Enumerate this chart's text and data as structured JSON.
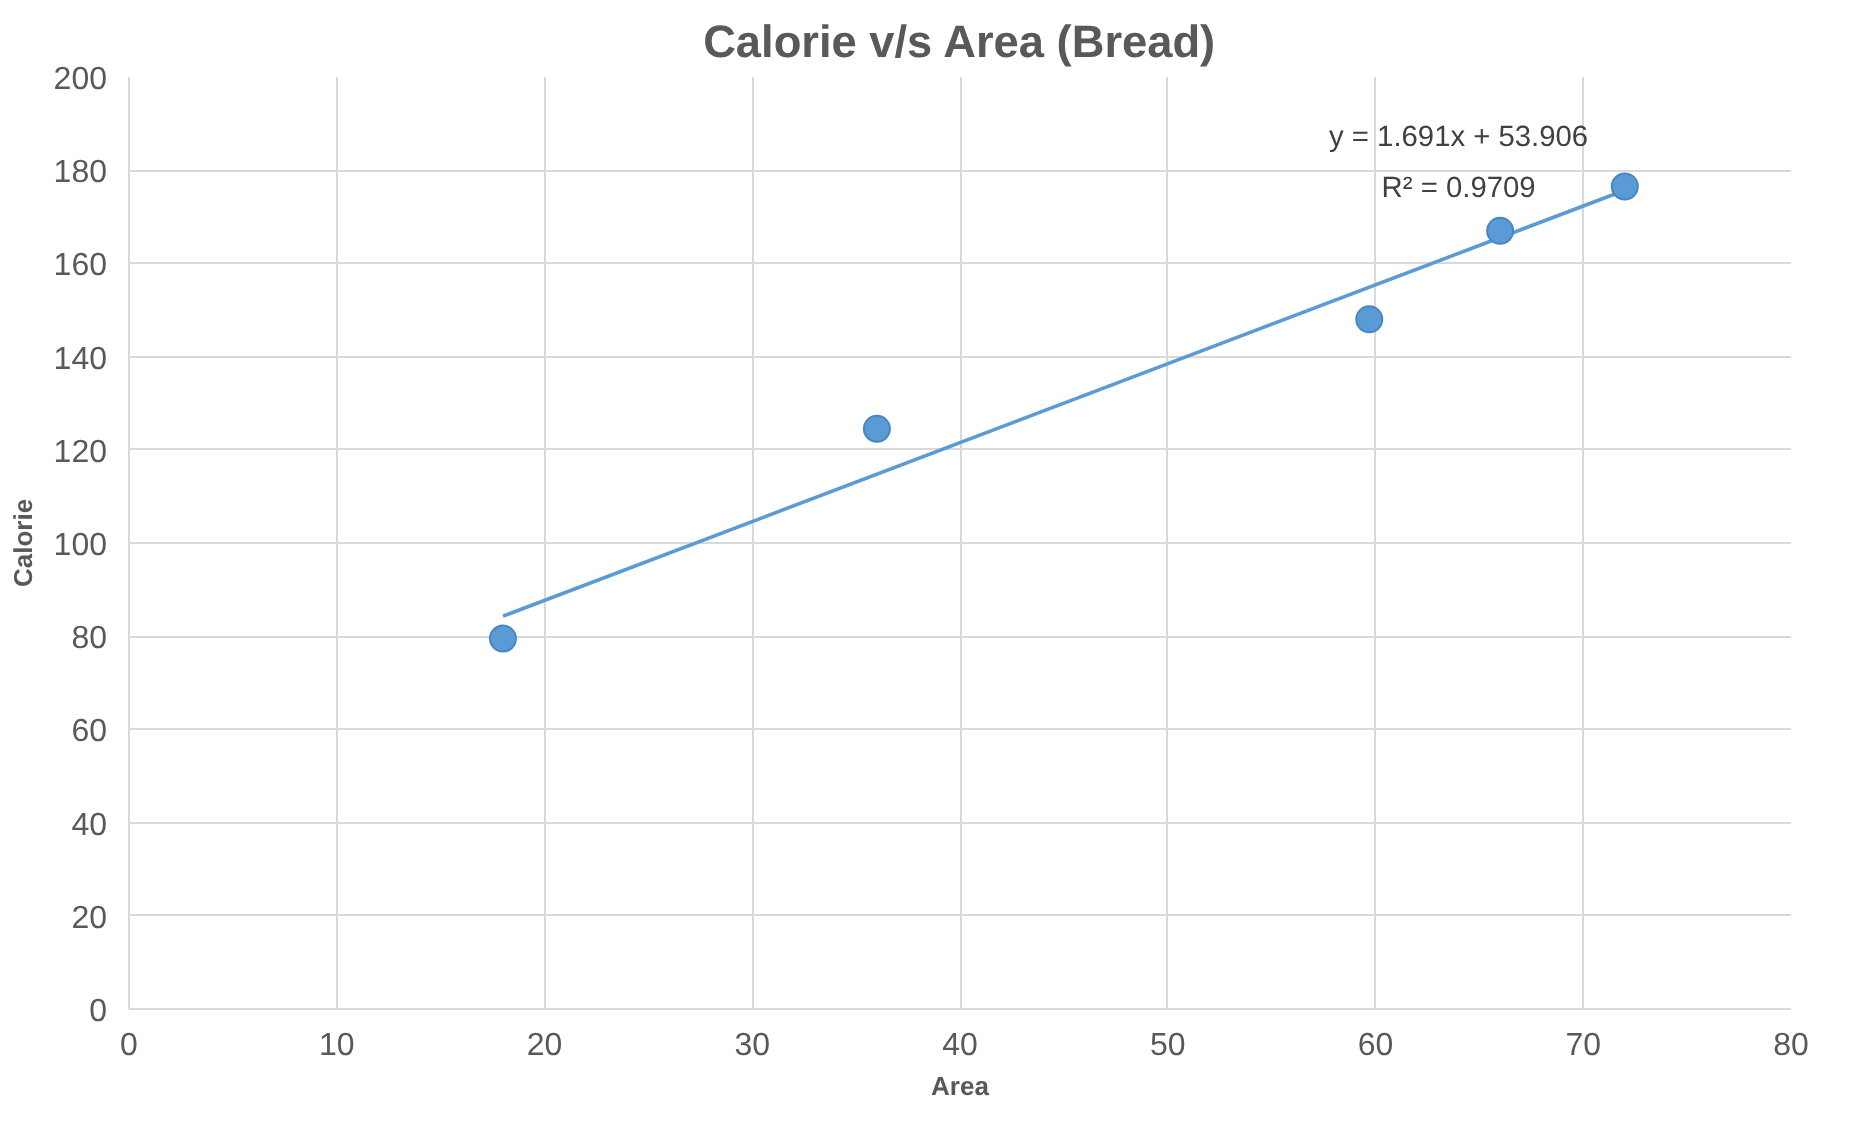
{
  "chart_data": {
    "type": "scatter",
    "title": "Calorie v/s Area (Bread)",
    "xlabel": "Area",
    "ylabel": "Calorie",
    "xlim": [
      0,
      80
    ],
    "xticks": [
      0,
      10,
      20,
      30,
      40,
      50,
      60,
      70,
      80
    ],
    "ylim": [
      0,
      200
    ],
    "yticks": [
      0,
      20,
      40,
      60,
      80,
      100,
      120,
      140,
      160,
      180,
      200
    ],
    "grid": true,
    "series": [
      {
        "marker": "circle",
        "color": "#5b9bd5",
        "x": [
          18,
          36,
          59.7,
          66,
          72
        ],
        "values": [
          79.5,
          124.5,
          148,
          167,
          176.5
        ]
      },
      {
        "type": "line",
        "color": "#5b9bd5",
        "x": [
          18,
          72
        ],
        "values": [
          84.3,
          175.7
        ],
        "line_style": "solid"
      }
    ],
    "annotations": [
      "y = 1.691x + 53.906",
      "R² = 0.9709"
    ]
  }
}
